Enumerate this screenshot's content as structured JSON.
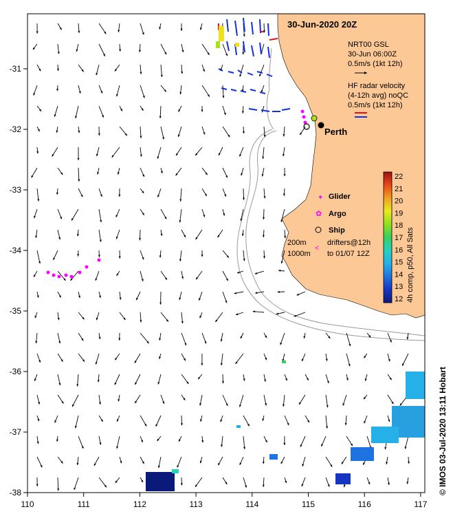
{
  "title": "30-Jun-2020 20Z",
  "x_ticks": [
    "110",
    "111",
    "112",
    "113",
    "114",
    "115",
    "116",
    "117"
  ],
  "y_ticks": [
    "-31",
    "-32",
    "-33",
    "-34",
    "-35",
    "-36",
    "-37",
    "-38"
  ],
  "city_label": "Perth",
  "gsl_legend": {
    "line1": "NRT00 GSL",
    "line2": "30-Jun 06:00Z",
    "line3": "0.5m/s (1kt 12h)"
  },
  "hf_legend": {
    "line1": "HF radar velocity",
    "line2": "(4-12h avg) noQC",
    "line3": "0.5m/s (1kt 12h)"
  },
  "markers": {
    "glider": "Glider",
    "argo": "Argo",
    "ship": "Ship"
  },
  "depth_labels": {
    "d200": "200m",
    "d1000": "1000m"
  },
  "drifters": {
    "line1": "drifters@12h",
    "line2": "to 01/07 12Z"
  },
  "colorbar": {
    "ticks": [
      "12",
      "13",
      "14",
      "15",
      "16",
      "17",
      "18",
      "19",
      "20",
      "21",
      "22"
    ],
    "label": "4h comp, p50, All Sats",
    "colors": [
      "#0a1a7a",
      "#1535c0",
      "#1f73e0",
      "#26b0e8",
      "#28d0c0",
      "#38d060",
      "#8fe020",
      "#e8e820",
      "#f0a020",
      "#e84818",
      "#a01010"
    ]
  },
  "credit": "© IMOS 03-Jul-2020 13:11 Hobart",
  "colors": {
    "land": "#fcc896",
    "arrow": "#000000",
    "hf_blue": "#1030e0",
    "hf_red": "#e81010",
    "glider": "#ff00ff",
    "bathy": "#9a9a9a"
  }
}
